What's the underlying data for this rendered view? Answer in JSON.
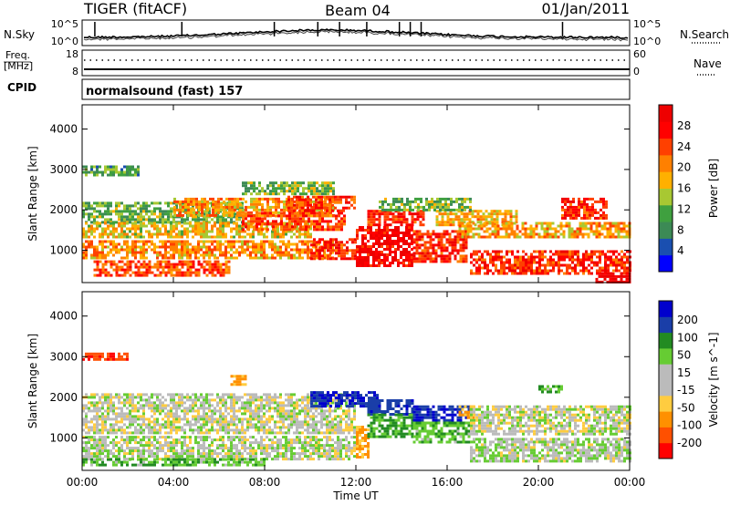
{
  "header": {
    "title": "TIGER (fitACF)",
    "beam": "Beam 04",
    "date": "01/Jan/2011"
  },
  "noise_panel": {
    "left_label": "N.Sky",
    "left_ticks": [
      "10^5",
      "10^0"
    ],
    "right_label": "N.Search",
    "right_ticks": [
      "10^5",
      "10^0"
    ]
  },
  "freq_panel": {
    "left_label_line1": "Freq.",
    "left_label_line2": "[MHz]",
    "left_ticks": [
      "18",
      "8"
    ],
    "right_label": "Nave",
    "right_ticks": [
      "60",
      "0"
    ]
  },
  "cpid": {
    "label": "CPID",
    "value": "normalsound (fast) 157"
  },
  "colors": {
    "power_scale": [
      "#0000ff",
      "#1a4fb0",
      "#3c8a55",
      "#3fa03f",
      "#a8c832",
      "#ffb000",
      "#ff8000",
      "#ff4000",
      "#ff0000",
      "#ee0000"
    ],
    "velocity_scale": [
      "#ff0000",
      "#ff5000",
      "#ff9000",
      "#ffcc40",
      "#bbbbbb",
      "#bbbbbb",
      "#66cc33",
      "#228b22",
      "#1a3ea8",
      "#0000cd"
    ]
  },
  "chart_data": [
    {
      "type": "heatmap",
      "title": "",
      "xlabel": "",
      "ylabel": "Slant Range [km]",
      "x_ticks": [
        "00:00",
        "04:00",
        "08:00",
        "12:00",
        "16:00",
        "20:00",
        "00:00"
      ],
      "y_ticks": [
        "1000",
        "2000",
        "3000",
        "4000"
      ],
      "ylim": [
        200,
        4600
      ],
      "colorbar_label": "Power [dB]",
      "colorbar_ticks": [
        "4",
        "8",
        "12",
        "16",
        "20",
        "24",
        "28"
      ],
      "colorbar_range": [
        0,
        32
      ],
      "regions": [
        {
          "x0": 0.0,
          "x1": 2.5,
          "y0": 2850,
          "y1": 3100,
          "value": 10
        },
        {
          "x0": 0.0,
          "x1": 7.0,
          "y0": 1700,
          "y1": 2200,
          "value": 12
        },
        {
          "x0": 0.0,
          "x1": 10.0,
          "y0": 1300,
          "y1": 1700,
          "value": 17
        },
        {
          "x0": 0.0,
          "x1": 11.0,
          "y0": 800,
          "y1": 1250,
          "value": 20
        },
        {
          "x0": 0.5,
          "x1": 6.5,
          "y0": 350,
          "y1": 750,
          "value": 24
        },
        {
          "x0": 4.0,
          "x1": 11.0,
          "y0": 1850,
          "y1": 2300,
          "value": 20
        },
        {
          "x0": 7.0,
          "x1": 11.5,
          "y0": 1500,
          "y1": 1950,
          "value": 24
        },
        {
          "x0": 7.0,
          "x1": 11.0,
          "y0": 2400,
          "y1": 2700,
          "value": 12
        },
        {
          "x0": 9.0,
          "x1": 12.0,
          "y0": 2000,
          "y1": 2350,
          "value": 25
        },
        {
          "x0": 10.0,
          "x1": 12.0,
          "y0": 800,
          "y1": 1300,
          "value": 27
        },
        {
          "x0": 12.0,
          "x1": 14.5,
          "y0": 600,
          "y1": 1600,
          "value": 29
        },
        {
          "x0": 12.5,
          "x1": 15.0,
          "y0": 1600,
          "y1": 2000,
          "value": 27
        },
        {
          "x0": 14.5,
          "x1": 16.8,
          "y0": 700,
          "y1": 1500,
          "value": 26
        },
        {
          "x0": 15.5,
          "x1": 19.0,
          "y0": 1600,
          "y1": 2000,
          "value": 18
        },
        {
          "x0": 16.5,
          "x1": 24.0,
          "y0": 1300,
          "y1": 1700,
          "value": 19
        },
        {
          "x0": 17.0,
          "x1": 24.0,
          "y0": 400,
          "y1": 1000,
          "value": 26
        },
        {
          "x0": 21.0,
          "x1": 23.0,
          "y0": 1800,
          "y1": 2300,
          "value": 26
        },
        {
          "x0": 22.5,
          "x1": 24.0,
          "y0": 200,
          "y1": 450,
          "value": 30
        },
        {
          "x0": 13.0,
          "x1": 17.0,
          "y0": 2000,
          "y1": 2300,
          "value": 12
        }
      ]
    },
    {
      "type": "heatmap",
      "title": "",
      "xlabel": "Time UT",
      "ylabel": "Slant Range [km]",
      "x_ticks": [
        "00:00",
        "04:00",
        "08:00",
        "12:00",
        "16:00",
        "20:00",
        "00:00"
      ],
      "y_ticks": [
        "1000",
        "2000",
        "3000",
        "4000"
      ],
      "ylim": [
        200,
        4600
      ],
      "colorbar_label": "Velocity [m s^-1]",
      "colorbar_ticks": [
        "200",
        "100",
        "50",
        "15",
        "-15",
        "-50",
        "-100",
        "-200"
      ],
      "colorbar_range": [
        -250,
        250
      ],
      "regions": [
        {
          "x0": 0.0,
          "x1": 2.0,
          "y0": 2900,
          "y1": 3100,
          "value": -190
        },
        {
          "x0": 0.0,
          "x1": 12.0,
          "y0": 1100,
          "y1": 2100,
          "value": 0
        },
        {
          "x0": 0.0,
          "x1": 12.0,
          "y0": 500,
          "y1": 1050,
          "value": 5
        },
        {
          "x0": 0.0,
          "x1": 8.0,
          "y0": 300,
          "y1": 500,
          "value": 40
        },
        {
          "x0": 6.5,
          "x1": 7.2,
          "y0": 2300,
          "y1": 2550,
          "value": -70
        },
        {
          "x0": 10.0,
          "x1": 13.0,
          "y0": 1800,
          "y1": 2150,
          "value": 200
        },
        {
          "x0": 12.0,
          "x1": 12.6,
          "y0": 500,
          "y1": 1300,
          "value": -60
        },
        {
          "x0": 12.5,
          "x1": 14.5,
          "y0": 1600,
          "y1": 1950,
          "value": 180
        },
        {
          "x0": 12.5,
          "x1": 14.5,
          "y0": 1000,
          "y1": 1600,
          "value": 60
        },
        {
          "x0": 14.5,
          "x1": 17.0,
          "y0": 1400,
          "y1": 1800,
          "value": 200
        },
        {
          "x0": 14.5,
          "x1": 17.0,
          "y0": 900,
          "y1": 1400,
          "value": 40
        },
        {
          "x0": 16.5,
          "x1": 17.2,
          "y0": 1500,
          "y1": 1800,
          "value": -70
        },
        {
          "x0": 17.0,
          "x1": 24.0,
          "y0": 1100,
          "y1": 1800,
          "value": 0
        },
        {
          "x0": 17.0,
          "x1": 24.0,
          "y0": 400,
          "y1": 1000,
          "value": 10
        },
        {
          "x0": 20.0,
          "x1": 21.0,
          "y0": 2100,
          "y1": 2300,
          "value": 40
        }
      ]
    }
  ]
}
